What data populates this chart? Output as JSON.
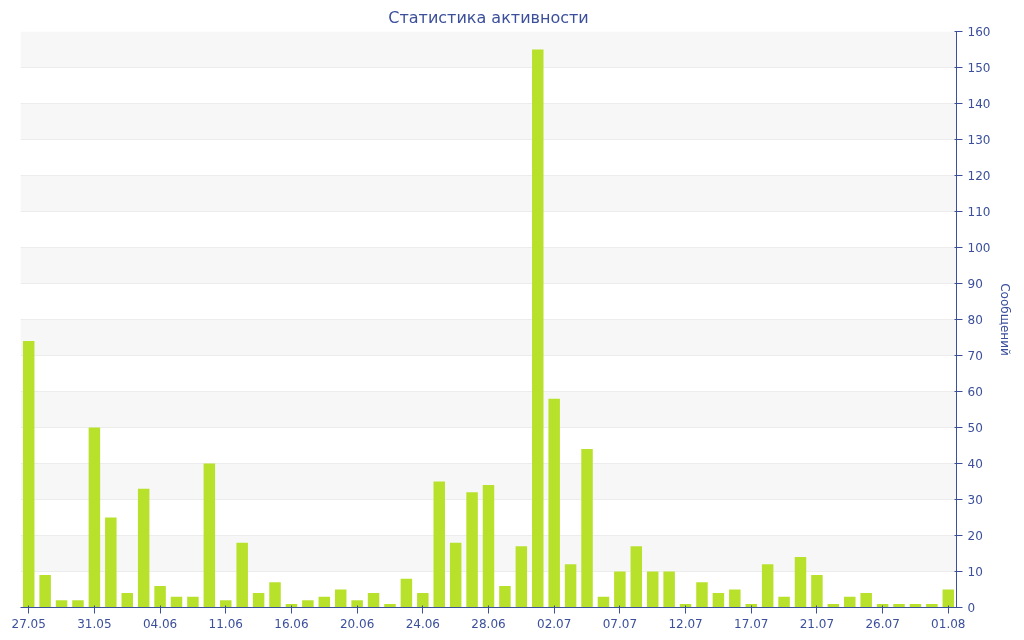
{
  "chart_data": {
    "type": "bar",
    "title": "Статистика активности",
    "ylabel": "Сообщений",
    "categories": [
      "27.05",
      null,
      null,
      null,
      "31.05",
      null,
      null,
      null,
      "04.06",
      null,
      null,
      null,
      "11.06",
      null,
      null,
      null,
      "16.06",
      null,
      null,
      null,
      "20.06",
      null,
      null,
      null,
      "24.06",
      null,
      null,
      null,
      "28.06",
      null,
      null,
      null,
      "02.07",
      null,
      null,
      null,
      "07.07",
      null,
      null,
      null,
      "12.07",
      null,
      null,
      null,
      "17.07",
      null,
      null,
      null,
      "21.07",
      null,
      null,
      null,
      "26.07",
      null,
      null,
      null,
      "01.08"
    ],
    "values": [
      74,
      9,
      2,
      2,
      50,
      25,
      4,
      33,
      6,
      3,
      3,
      40,
      2,
      18,
      4,
      7,
      1,
      2,
      3,
      5,
      2,
      4,
      1,
      8,
      4,
      35,
      18,
      32,
      34,
      6,
      17,
      155,
      58,
      12,
      44,
      3,
      10,
      17,
      10,
      10,
      1,
      7,
      4,
      5,
      1,
      12,
      3,
      14,
      9,
      1,
      3,
      4,
      1,
      1,
      1,
      1,
      5
    ],
    "color": "#b8e12c",
    "ylim": [
      0,
      160
    ],
    "yticks": [
      0,
      10,
      20,
      30,
      40,
      50,
      60,
      70,
      80,
      90,
      100,
      110,
      120,
      130,
      140,
      150,
      160
    ],
    "grid": "y"
  }
}
